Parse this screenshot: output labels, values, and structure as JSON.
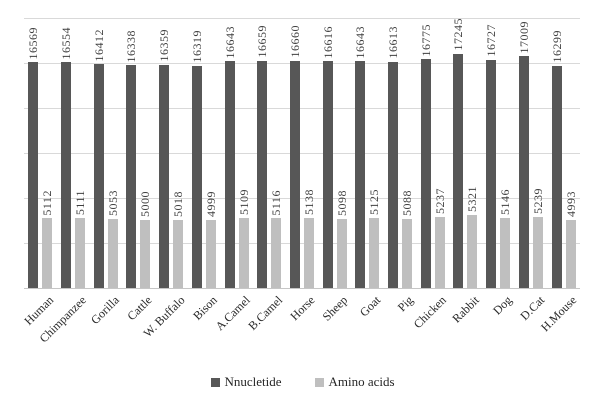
{
  "chart_data": {
    "type": "bar",
    "title": "",
    "xlabel": "",
    "ylabel": "",
    "categories": [
      "Human",
      "Chimpanzee",
      "Gorilla",
      "Cattle",
      "W. Buffalo",
      "Bison",
      "A.Camel",
      "B.Camel",
      "Horse",
      "Sheep",
      "Goat",
      "Pig",
      "Chicken",
      "Rabbit",
      "Dog",
      "D.Cat",
      "H.Mouse"
    ],
    "series": [
      {
        "name": "Nnucletide",
        "color": "#575757",
        "values": [
          16569,
          16554,
          16412,
          16338,
          16359,
          16319,
          16643,
          16659,
          16660,
          16616,
          16643,
          16613,
          16775,
          17245,
          16727,
          17009,
          16299
        ]
      },
      {
        "name": "Amino acids",
        "color": "#bfbfbf",
        "values": [
          5112,
          5111,
          5053,
          5000,
          5018,
          4999,
          5109,
          5116,
          5138,
          5098,
          5125,
          5088,
          5237,
          5321,
          5146,
          5239,
          4993
        ]
      }
    ],
    "ylim": [
      0,
      19800
    ],
    "gridline_count": 7,
    "grid": true,
    "y_axis_labels_visible": false,
    "data_labels": "rotated-90-above-bars",
    "legend_position": "bottom"
  }
}
